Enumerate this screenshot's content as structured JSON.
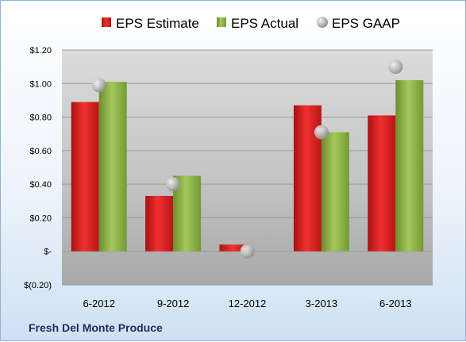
{
  "chart_data": {
    "type": "bar",
    "categories": [
      "6-2012",
      "9-2012",
      "12-2012",
      "3-2013",
      "6-2013"
    ],
    "series": [
      {
        "name": "EPS Estimate",
        "kind": "bar",
        "color": "#e02020",
        "values": [
          0.89,
          0.33,
          0.04,
          0.87,
          0.81
        ]
      },
      {
        "name": "EPS Actual",
        "kind": "bar",
        "color": "#8fb446",
        "values": [
          1.01,
          0.45,
          null,
          0.71,
          1.02
        ]
      },
      {
        "name": "EPS GAAP",
        "kind": "marker",
        "color": "#b0b0b0",
        "values": [
          0.99,
          0.4,
          0.0,
          0.71,
          1.1
        ]
      }
    ],
    "y_ticks": [
      -0.2,
      0,
      0.2,
      0.4,
      0.6,
      0.8,
      1.0,
      1.2
    ],
    "y_tick_labels": [
      "$(0.20)",
      "$-",
      "$0.20",
      "$0.40",
      "$0.60",
      "$0.80",
      "$1.00",
      "$1.20"
    ],
    "ylim": [
      -0.2,
      1.2
    ],
    "grid": true,
    "legend_position": "top",
    "title": "",
    "xlabel": "",
    "ylabel": ""
  },
  "footer": {
    "company": "Fresh Del Monte Produce"
  }
}
